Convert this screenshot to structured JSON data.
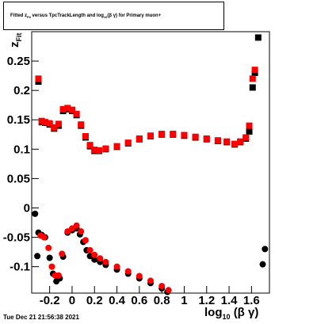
{
  "title": {
    "prefix": "Fitted  z",
    "sub": "Fit",
    "mid": "  versus  TpcTrackLength and log",
    "sub2": "10",
    "suffix": "(β γ) for Primary muon+"
  },
  "y_axis": {
    "label": "z",
    "sub": "Fit"
  },
  "x_axis": {
    "label": "log",
    "sub": "10",
    "suffix": "(β γ)"
  },
  "footer": "Tue Dec 21 21:56:38 2021",
  "chart_data": {
    "type": "scatter",
    "xlim": [
      -0.36,
      1.76
    ],
    "ylim": [
      -0.145,
      0.3
    ],
    "x_ticks": [
      -0.2,
      0,
      0.2,
      0.4,
      0.6,
      0.8,
      1,
      1.2,
      1.4,
      1.6
    ],
    "x_tick_labels": [
      "-0.2",
      "0",
      "0.2",
      "0.4",
      "0.6",
      "0.8",
      "1",
      "1.2",
      "1.4",
      "1.6"
    ],
    "y_ticks": [
      -0.1,
      -0.05,
      0,
      0.05,
      0.1,
      0.15,
      0.2,
      0.25
    ],
    "y_tick_labels": [
      "-0.1",
      "-0.05",
      "0",
      "0.05",
      "0.1",
      "0.15",
      "0.2",
      "0.25"
    ],
    "series": [
      {
        "color": "#000000",
        "marker": "square",
        "points": [
          [
            -0.3,
            0.215
          ],
          [
            -0.27,
            0.146
          ],
          [
            -0.24,
            0.145
          ],
          [
            -0.2,
            0.142
          ],
          [
            -0.16,
            0.135
          ],
          [
            -0.12,
            0.14
          ],
          [
            -0.08,
            0.165
          ],
          [
            -0.04,
            0.168
          ],
          [
            0.0,
            0.165
          ],
          [
            0.04,
            0.158
          ],
          [
            0.08,
            0.14
          ],
          [
            0.12,
            0.12
          ],
          [
            0.16,
            0.105
          ],
          [
            0.2,
            0.097
          ],
          [
            0.24,
            0.097
          ],
          [
            0.3,
            0.1
          ],
          [
            0.4,
            0.104
          ],
          [
            0.5,
            0.11
          ],
          [
            0.6,
            0.117
          ],
          [
            0.7,
            0.122
          ],
          [
            0.8,
            0.125
          ],
          [
            0.9,
            0.125
          ],
          [
            1.0,
            0.123
          ],
          [
            1.1,
            0.12
          ],
          [
            1.2,
            0.117
          ],
          [
            1.3,
            0.114
          ],
          [
            1.38,
            0.112
          ],
          [
            1.45,
            0.108
          ],
          [
            1.5,
            0.112
          ],
          [
            1.55,
            0.118
          ],
          [
            1.58,
            0.13
          ],
          [
            1.61,
            0.205
          ],
          [
            1.63,
            0.23
          ],
          [
            1.66,
            0.29
          ]
        ]
      },
      {
        "color": "#ff0000",
        "marker": "square",
        "points": [
          [
            -0.3,
            0.22
          ],
          [
            -0.27,
            0.148
          ],
          [
            -0.24,
            0.146
          ],
          [
            -0.2,
            0.144
          ],
          [
            -0.16,
            0.137
          ],
          [
            -0.12,
            0.143
          ],
          [
            -0.08,
            0.168
          ],
          [
            -0.04,
            0.17
          ],
          [
            0.0,
            0.167
          ],
          [
            0.04,
            0.16
          ],
          [
            0.08,
            0.142
          ],
          [
            0.12,
            0.122
          ],
          [
            0.16,
            0.107
          ],
          [
            0.2,
            0.099
          ],
          [
            0.24,
            0.098
          ],
          [
            0.3,
            0.101
          ],
          [
            0.4,
            0.105
          ],
          [
            0.5,
            0.111
          ],
          [
            0.6,
            0.118
          ],
          [
            0.7,
            0.123
          ],
          [
            0.8,
            0.126
          ],
          [
            0.9,
            0.126
          ],
          [
            1.0,
            0.124
          ],
          [
            1.1,
            0.121
          ],
          [
            1.2,
            0.118
          ],
          [
            1.3,
            0.115
          ],
          [
            1.38,
            0.113
          ],
          [
            1.45,
            0.109
          ],
          [
            1.5,
            0.113
          ],
          [
            1.55,
            0.12
          ],
          [
            1.58,
            0.14
          ],
          [
            1.61,
            0.22
          ],
          [
            1.63,
            0.235
          ]
        ]
      },
      {
        "color": "#000000",
        "marker": "circle",
        "points": [
          [
            -0.33,
            -0.01
          ],
          [
            -0.31,
            -0.082
          ],
          [
            -0.3,
            -0.042
          ],
          [
            -0.27,
            -0.046
          ],
          [
            -0.24,
            -0.05
          ],
          [
            -0.2,
            -0.085
          ],
          [
            -0.17,
            -0.112
          ],
          [
            -0.14,
            -0.125
          ],
          [
            -0.11,
            -0.12
          ],
          [
            -0.08,
            -0.083
          ],
          [
            -0.04,
            -0.042
          ],
          [
            0.0,
            -0.038
          ],
          [
            0.04,
            -0.035
          ],
          [
            0.07,
            -0.045
          ],
          [
            0.1,
            -0.058
          ],
          [
            0.13,
            -0.072
          ],
          [
            0.16,
            -0.082
          ],
          [
            0.2,
            -0.088
          ],
          [
            0.25,
            -0.092
          ],
          [
            0.3,
            -0.097
          ],
          [
            0.4,
            -0.105
          ],
          [
            0.5,
            -0.112
          ],
          [
            0.6,
            -0.12
          ],
          [
            0.7,
            -0.128
          ],
          [
            0.8,
            -0.137
          ],
          [
            0.85,
            -0.143
          ],
          [
            1.7,
            -0.096
          ],
          [
            1.72,
            -0.07
          ]
        ]
      },
      {
        "color": "#ff0000",
        "marker": "circle",
        "points": [
          [
            -0.28,
            -0.047
          ],
          [
            -0.25,
            -0.05
          ],
          [
            -0.21,
            -0.068
          ],
          [
            -0.18,
            -0.1
          ],
          [
            -0.15,
            -0.115
          ],
          [
            -0.12,
            -0.115
          ],
          [
            -0.09,
            -0.078
          ],
          [
            -0.04,
            -0.04
          ],
          [
            0.0,
            -0.035
          ],
          [
            0.04,
            -0.03
          ],
          [
            0.08,
            -0.04
          ],
          [
            0.12,
            -0.055
          ],
          [
            0.16,
            -0.072
          ],
          [
            0.2,
            -0.08
          ],
          [
            0.25,
            -0.086
          ],
          [
            0.3,
            -0.092
          ],
          [
            0.4,
            -0.1
          ],
          [
            0.5,
            -0.108
          ],
          [
            0.6,
            -0.116
          ],
          [
            0.7,
            -0.124
          ],
          [
            0.8,
            -0.133
          ],
          [
            0.86,
            -0.14
          ]
        ]
      }
    ]
  }
}
